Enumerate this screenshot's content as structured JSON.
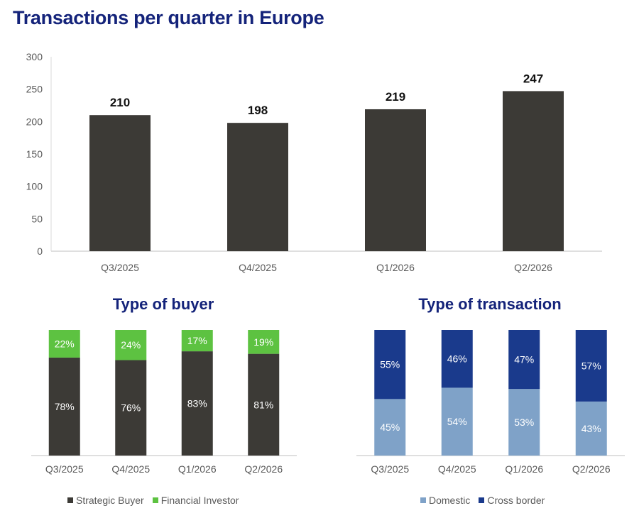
{
  "chart_data": [
    {
      "type": "bar",
      "title": "Transactions per quarter in Europe",
      "categories": [
        "Q3/2025",
        "Q4/2025",
        "Q1/2026",
        "Q2/2026"
      ],
      "values": [
        210,
        198,
        219,
        247
      ],
      "value_labels": [
        "210",
        "198",
        "219",
        "247"
      ],
      "ylim": [
        0,
        300
      ],
      "yticks": [
        "0",
        "50",
        "100",
        "150",
        "200",
        "250",
        "300"
      ],
      "ytick_values": [
        0,
        50,
        100,
        150,
        200,
        250,
        300
      ],
      "color": "#3c3a36",
      "grid": false,
      "legend": "none"
    },
    {
      "type": "bar",
      "stacked": true,
      "percent": true,
      "title": "Type of buyer",
      "categories": [
        "Q3/2025",
        "Q4/2025",
        "Q1/2026",
        "Q2/2026"
      ],
      "series": [
        {
          "name": "Strategic Buyer",
          "values": [
            78,
            76,
            83,
            81
          ],
          "labels": [
            "78%",
            "76%",
            "83%",
            "81%"
          ],
          "color": "#3c3a36",
          "label_color": "#ffffff"
        },
        {
          "name": "Financial Investor",
          "values": [
            22,
            24,
            17,
            19
          ],
          "labels": [
            "22%",
            "24%",
            "17%",
            "19%"
          ],
          "color": "#5dc241",
          "label_color": "#ffffff"
        }
      ],
      "legend": "bottom"
    },
    {
      "type": "bar",
      "stacked": true,
      "percent": true,
      "title": "Type of transaction",
      "categories": [
        "Q3/2025",
        "Q4/2025",
        "Q1/2026",
        "Q2/2026"
      ],
      "series": [
        {
          "name": "Domestic",
          "values": [
            45,
            54,
            53,
            43
          ],
          "labels": [
            "45%",
            "54%",
            "53%",
            "43%"
          ],
          "color": "#7fa2c8",
          "label_color": "#ffffff"
        },
        {
          "name": "Cross border",
          "values": [
            55,
            46,
            47,
            57
          ],
          "labels": [
            "55%",
            "46%",
            "47%",
            "57%"
          ],
          "color": "#1a3a8c",
          "label_color": "#ffffff"
        }
      ],
      "legend": "bottom"
    }
  ]
}
